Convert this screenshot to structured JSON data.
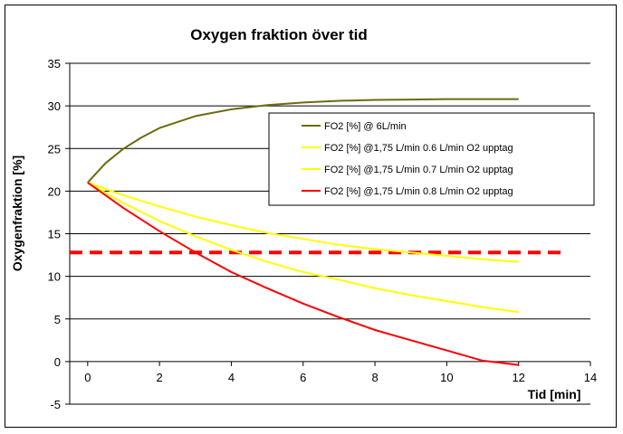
{
  "chart_data": {
    "type": "line",
    "title": "Oxygen fraktion över tid",
    "xlabel": "Tid [min]",
    "ylabel": "Oxygenfraktion [%]",
    "xlim": [
      -0.5,
      14
    ],
    "ylim": [
      -5,
      35
    ],
    "xticks": [
      0,
      2,
      4,
      6,
      8,
      10,
      12,
      14
    ],
    "yticks": [
      -5,
      0,
      5,
      10,
      15,
      20,
      25,
      30,
      35
    ],
    "grid": "horizontal",
    "legend_position": "right",
    "series": [
      {
        "name": "FO2 [%] @ 6L/min",
        "color": "#6b6b10",
        "x": [
          0,
          0.5,
          1,
          1.5,
          2,
          3,
          4,
          5,
          6,
          7,
          8,
          9,
          10,
          11,
          12
        ],
        "values": [
          21,
          23.3,
          25,
          26.3,
          27.4,
          28.8,
          29.6,
          30.1,
          30.4,
          30.6,
          30.7,
          30.75,
          30.8,
          30.8,
          30.8
        ]
      },
      {
        "name": "FO2 [%] @1,75 L/min 0.6 L/min O2 upptag",
        "color": "#ffff00",
        "x": [
          0,
          1,
          2,
          3,
          4,
          5,
          6,
          7,
          8,
          9,
          10,
          11,
          12
        ],
        "values": [
          21,
          19.5,
          18.2,
          17,
          16,
          15.1,
          14.4,
          13.7,
          13.2,
          12.8,
          12.4,
          12,
          11.7
        ]
      },
      {
        "name": "FO2 [%] @1,75 L/min 0.7 L/min O2 upptag",
        "color": "#ffff00",
        "x": [
          0,
          1,
          2,
          3,
          4,
          5,
          6,
          7,
          8,
          9,
          10,
          11,
          12
        ],
        "values": [
          21,
          18.6,
          16.5,
          14.7,
          13.1,
          11.7,
          10.5,
          9.6,
          8.6,
          7.8,
          7.1,
          6.4,
          5.8
        ]
      },
      {
        "name": "FO2 [%] @1,75 L/min 0.8 L/min O2 upptag",
        "color": "#ff0000",
        "x": [
          0,
          1,
          2,
          3,
          4,
          5,
          6,
          7,
          8,
          9,
          10,
          11,
          12
        ],
        "values": [
          21,
          18,
          15.3,
          12.8,
          10.5,
          8.6,
          6.8,
          5.2,
          3.7,
          2.5,
          1.3,
          0.1,
          -0.4
        ]
      }
    ],
    "reference_line": {
      "y": 12.8,
      "x_range": [
        -0.5,
        13.3
      ],
      "color": "#ff0000",
      "style": "dashed"
    }
  }
}
